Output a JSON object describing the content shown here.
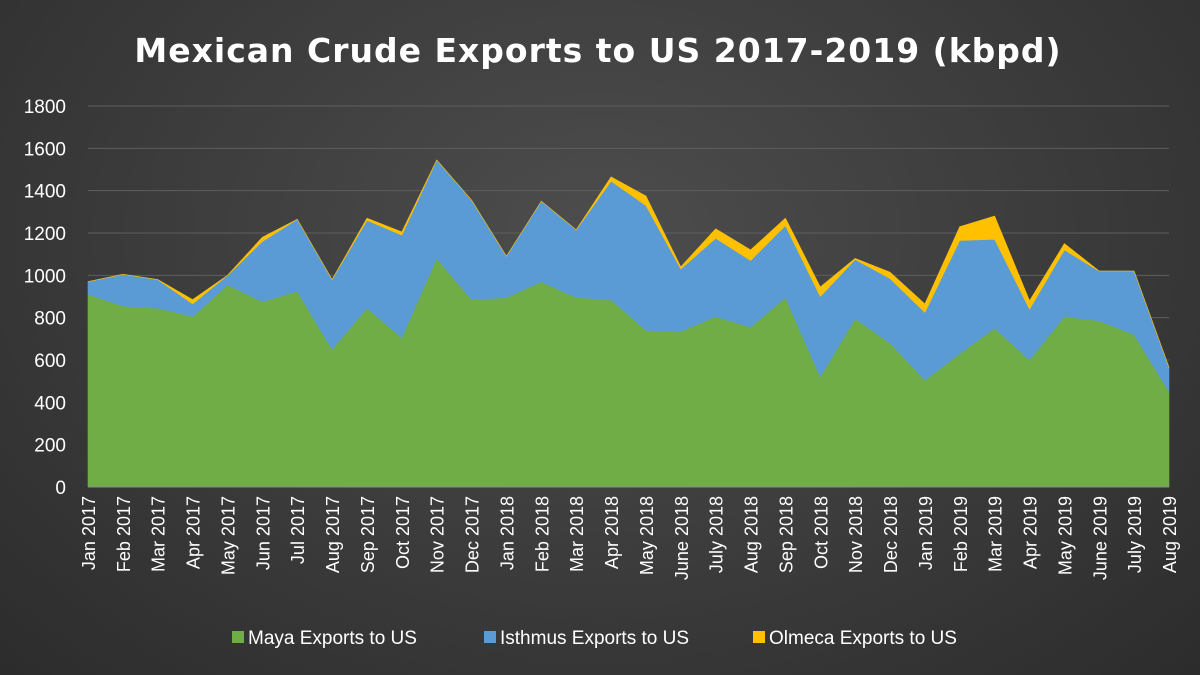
{
  "chart_data": {
    "type": "area",
    "stacked": true,
    "title": "Mexican Crude Exports to US 2017-2019 (kbpd)",
    "xlabel": "",
    "ylabel": "",
    "ylim": [
      0,
      1800
    ],
    "yticks": [
      0,
      200,
      400,
      600,
      800,
      1000,
      1200,
      1400,
      1600,
      1800
    ],
    "grid": true,
    "legend": "bottom",
    "categories": [
      "Jan 2017",
      "Feb 2017",
      "Mar 2017",
      "Apr 2017",
      "May 2017",
      "Jun 2017",
      "Jul 2017",
      "Aug 2017",
      "Sep 2017",
      "Oct 2017",
      "Nov 2017",
      "Dec 2017",
      "Jan 2018",
      "Feb 2018",
      "Mar 2018",
      "Apr 2018",
      "May 2018",
      "June 2018",
      "July 2018",
      "Aug 2018",
      "Sep 2018",
      "Oct 2018",
      "Nov 2018",
      "Dec 2018",
      "Jan 2019",
      "Feb 2019",
      "Mar 2019",
      "Apr 2019",
      "May 2019",
      "June 2019",
      "July 2019",
      "Aug 2019"
    ],
    "series": [
      {
        "name": "Maya Exports to US",
        "color": "#70ad47",
        "values": [
          910,
          855,
          845,
          805,
          955,
          875,
          925,
          650,
          845,
          705,
          1080,
          885,
          895,
          970,
          895,
          885,
          740,
          735,
          805,
          755,
          895,
          520,
          795,
          680,
          505,
          630,
          750,
          600,
          805,
          785,
          720,
          450
        ]
      },
      {
        "name": "Isthmus Exports to US",
        "color": "#5b9bd5",
        "values": [
          60,
          150,
          135,
          60,
          45,
          285,
          340,
          330,
          415,
          485,
          465,
          470,
          195,
          380,
          320,
          560,
          590,
          295,
          370,
          315,
          340,
          380,
          280,
          305,
          320,
          535,
          420,
          240,
          315,
          235,
          300,
          115
        ]
      },
      {
        "name": "Olmeca Exports to US",
        "color": "#ffc000",
        "values": [
          0,
          0,
          0,
          20,
          0,
          20,
          0,
          0,
          10,
          15,
          0,
          0,
          0,
          0,
          0,
          20,
          45,
          10,
          45,
          50,
          35,
          45,
          5,
          30,
          40,
          65,
          110,
          40,
          30,
          0,
          0,
          0
        ]
      }
    ]
  }
}
